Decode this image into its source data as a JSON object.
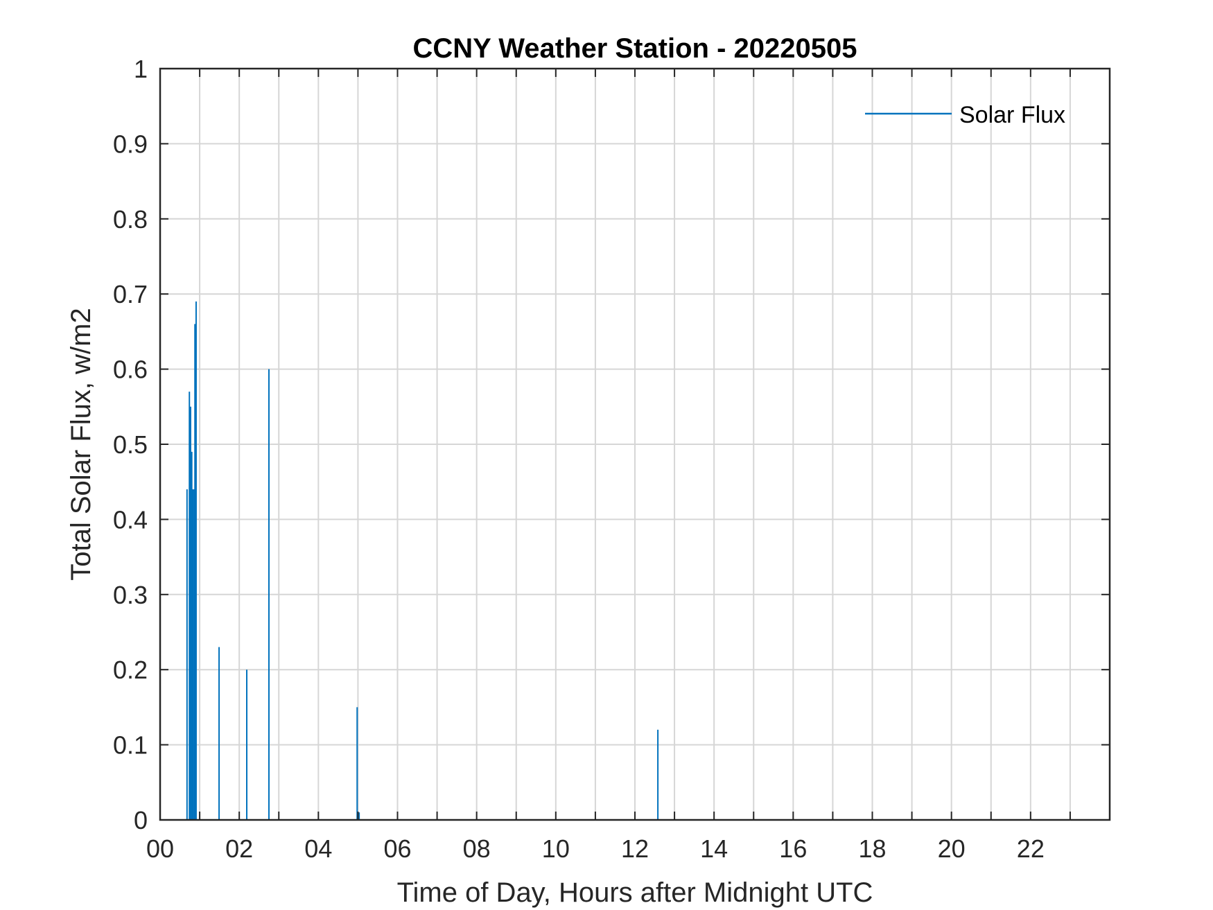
{
  "chart_data": {
    "type": "line",
    "title": "CCNY Weather Station - 20220505",
    "xlabel": "Time of Day, Hours after Midnight UTC",
    "ylabel": "Total Solar Flux, w/m2",
    "xlim": [
      0,
      24
    ],
    "ylim": [
      0,
      1
    ],
    "x_ticks": [
      0,
      2,
      4,
      6,
      8,
      10,
      12,
      14,
      16,
      18,
      20,
      22
    ],
    "x_tick_labels": [
      "00",
      "02",
      "04",
      "06",
      "08",
      "10",
      "12",
      "14",
      "16",
      "18",
      "20",
      "22"
    ],
    "y_ticks": [
      0,
      0.1,
      0.2,
      0.3,
      0.4,
      0.5,
      0.6,
      0.7,
      0.8,
      0.9,
      1
    ],
    "y_tick_labels": [
      "0",
      "0.1",
      "0.2",
      "0.3",
      "0.4",
      "0.5",
      "0.6",
      "0.7",
      "0.8",
      "0.9",
      "1"
    ],
    "grid": true,
    "legend_position": "top-right",
    "series": [
      {
        "name": "Solar Flux",
        "color": "#0072bd",
        "spikes": [
          {
            "x": 0.68,
            "y": 0.44
          },
          {
            "x": 0.74,
            "y": 0.57
          },
          {
            "x": 0.77,
            "y": 0.55
          },
          {
            "x": 0.8,
            "y": 0.49
          },
          {
            "x": 0.83,
            "y": 0.44
          },
          {
            "x": 0.86,
            "y": 0.44
          },
          {
            "x": 0.88,
            "y": 0.66
          },
          {
            "x": 0.91,
            "y": 0.69
          },
          {
            "x": 1.49,
            "y": 0.23
          },
          {
            "x": 2.19,
            "y": 0.2
          },
          {
            "x": 2.75,
            "y": 0.6
          },
          {
            "x": 4.98,
            "y": 0.15
          },
          {
            "x": 5.03,
            "y": 0.01
          },
          {
            "x": 12.58,
            "y": 0.12
          }
        ]
      }
    ]
  }
}
